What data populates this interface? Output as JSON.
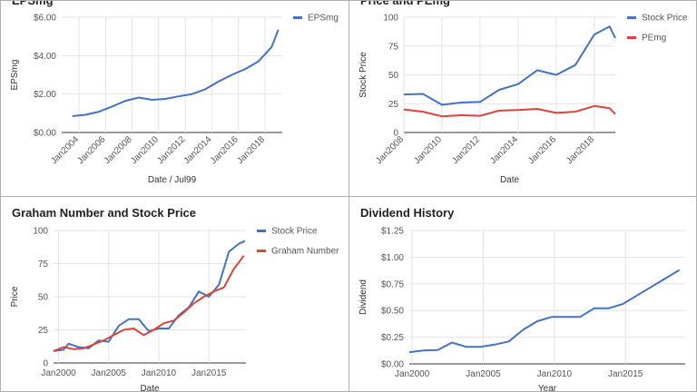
{
  "colors": {
    "blue": "#4472c4",
    "red": "#db4437",
    "grid": "#e3e3e3",
    "axis": "#333333",
    "text": "#555555"
  },
  "chart_data": [
    {
      "type": "line",
      "title": "EPSmg",
      "xlabel": "Date / Jul99",
      "ylabel": "EPSmg",
      "xlim": [
        2002.7,
        2019.3
      ],
      "ylim": [
        0,
        6
      ],
      "yticks": [
        {
          "v": 0,
          "label": "$0.00"
        },
        {
          "v": 2,
          "label": "$2.00"
        },
        {
          "v": 4,
          "label": "$4.00"
        },
        {
          "v": 6,
          "label": "$6.00"
        }
      ],
      "xticks": [
        {
          "v": 2004,
          "label": "Jan2004"
        },
        {
          "v": 2006,
          "label": "Jan2006"
        },
        {
          "v": 2008,
          "label": "Jan2008"
        },
        {
          "v": 2010,
          "label": "Jan2010"
        },
        {
          "v": 2012,
          "label": "Jan2012"
        },
        {
          "v": 2014,
          "label": "Jan2014"
        },
        {
          "v": 2016,
          "label": "Jan2016"
        },
        {
          "v": 2018,
          "label": "Jan2018"
        }
      ],
      "rotate_x": true,
      "legend": "right",
      "series": [
        {
          "name": "EPSmg",
          "color": "#4472c4",
          "points": [
            [
              2003.5,
              0.85
            ],
            [
              2004.5,
              0.92
            ],
            [
              2005.5,
              1.08
            ],
            [
              2006.5,
              1.35
            ],
            [
              2007.5,
              1.65
            ],
            [
              2008.5,
              1.82
            ],
            [
              2009.5,
              1.7
            ],
            [
              2010.5,
              1.75
            ],
            [
              2011.5,
              1.88
            ],
            [
              2012.5,
              2.0
            ],
            [
              2013.5,
              2.25
            ],
            [
              2014.5,
              2.65
            ],
            [
              2015.5,
              3.0
            ],
            [
              2016.5,
              3.3
            ],
            [
              2017.5,
              3.7
            ],
            [
              2018.5,
              4.45
            ],
            [
              2019.0,
              5.35
            ]
          ]
        }
      ]
    },
    {
      "type": "line",
      "title": "Price and PEmg",
      "xlabel": "Date",
      "ylabel": "Stock Price",
      "xlim": [
        2008,
        2019.1
      ],
      "ylim": [
        0,
        100
      ],
      "yticks": [
        {
          "v": 0,
          "label": "0"
        },
        {
          "v": 25,
          "label": "25"
        },
        {
          "v": 50,
          "label": "50"
        },
        {
          "v": 75,
          "label": "75"
        },
        {
          "v": 100,
          "label": "100"
        }
      ],
      "xticks": [
        {
          "v": 2008,
          "label": "Jan2008"
        },
        {
          "v": 2010,
          "label": "Jan2010"
        },
        {
          "v": 2012,
          "label": "Jan2012"
        },
        {
          "v": 2014,
          "label": "Jan2014"
        },
        {
          "v": 2016,
          "label": "Jan2016"
        },
        {
          "v": 2018,
          "label": "Jan2018"
        }
      ],
      "rotate_x": true,
      "legend": "right",
      "series": [
        {
          "name": "Stock Price",
          "color": "#4472c4",
          "points": [
            [
              2008.0,
              33
            ],
            [
              2009.0,
              33.5
            ],
            [
              2010.0,
              24
            ],
            [
              2011.0,
              26
            ],
            [
              2012.0,
              26.5
            ],
            [
              2013.0,
              37
            ],
            [
              2014.0,
              42
            ],
            [
              2015.0,
              54
            ],
            [
              2016.0,
              50
            ],
            [
              2017.0,
              58.5
            ],
            [
              2018.0,
              85
            ],
            [
              2018.8,
              92
            ],
            [
              2019.1,
              82
            ]
          ]
        },
        {
          "name": "PEmg",
          "color": "#db4437",
          "points": [
            [
              2008.0,
              20
            ],
            [
              2009.0,
              18
            ],
            [
              2010.0,
              14
            ],
            [
              2011.0,
              15
            ],
            [
              2012.0,
              14.5
            ],
            [
              2013.0,
              19
            ],
            [
              2014.0,
              19.5
            ],
            [
              2015.0,
              20.5
            ],
            [
              2016.0,
              17
            ],
            [
              2017.0,
              18
            ],
            [
              2018.0,
              23
            ],
            [
              2018.8,
              21
            ],
            [
              2019.1,
              16
            ]
          ]
        }
      ]
    },
    {
      "type": "line",
      "title": "Graham Number and Stock Price",
      "xlabel": "Date",
      "ylabel": "Price",
      "xlim": [
        1999.5,
        2018.7
      ],
      "ylim": [
        0,
        100
      ],
      "yticks": [
        {
          "v": 0,
          "label": "0"
        },
        {
          "v": 25,
          "label": "25"
        },
        {
          "v": 50,
          "label": "50"
        },
        {
          "v": 75,
          "label": "75"
        },
        {
          "v": 100,
          "label": "100"
        }
      ],
      "xticks": [
        {
          "v": 2000,
          "label": "Jan2000"
        },
        {
          "v": 2005,
          "label": "Jan2005"
        },
        {
          "v": 2010,
          "label": "Jan2010"
        },
        {
          "v": 2015,
          "label": "Jan2015"
        }
      ],
      "rotate_x": false,
      "legend": "right",
      "series": [
        {
          "name": "Stock Price",
          "color": "#4472c4",
          "points": [
            [
              1999.5,
              9
            ],
            [
              2000.5,
              10
            ],
            [
              2001.0,
              14.5
            ],
            [
              2002.0,
              12
            ],
            [
              2003.0,
              11
            ],
            [
              2004.0,
              17
            ],
            [
              2005.0,
              16
            ],
            [
              2006.0,
              28
            ],
            [
              2007.0,
              33
            ],
            [
              2008.0,
              33
            ],
            [
              2009.0,
              24
            ],
            [
              2010.0,
              26
            ],
            [
              2011.0,
              26
            ],
            [
              2012.0,
              36
            ],
            [
              2013.0,
              42
            ],
            [
              2014.0,
              54
            ],
            [
              2015.0,
              50
            ],
            [
              2016.0,
              59
            ],
            [
              2017.0,
              84
            ],
            [
              2018.0,
              90
            ],
            [
              2018.6,
              92
            ]
          ]
        },
        {
          "name": "Graham Number",
          "color": "#db4437",
          "points": [
            [
              1999.5,
              9
            ],
            [
              2000.5,
              12
            ],
            [
              2001.5,
              10.5
            ],
            [
              2002.5,
              11
            ],
            [
              2003.5,
              14
            ],
            [
              2004.5,
              17
            ],
            [
              2005.5,
              21
            ],
            [
              2006.5,
              25
            ],
            [
              2007.5,
              26
            ],
            [
              2008.5,
              21
            ],
            [
              2009.5,
              25
            ],
            [
              2010.5,
              30
            ],
            [
              2011.5,
              32
            ],
            [
              2012.5,
              38
            ],
            [
              2013.5,
              45
            ],
            [
              2014.5,
              50
            ],
            [
              2015.5,
              54
            ],
            [
              2016.5,
              57
            ],
            [
              2017.5,
              71
            ],
            [
              2018.5,
              81
            ]
          ]
        }
      ]
    },
    {
      "type": "line",
      "title": "Dividend History",
      "xlabel": "Year",
      "ylabel": "Dividend",
      "xlim": [
        1999.8,
        2019.2
      ],
      "ylim": [
        0,
        1.25
      ],
      "yticks": [
        {
          "v": 0,
          "label": "$0.00"
        },
        {
          "v": 0.25,
          "label": "$0.25"
        },
        {
          "v": 0.5,
          "label": "$0.50"
        },
        {
          "v": 0.75,
          "label": "$0.75"
        },
        {
          "v": 1.0,
          "label": "$1.00"
        },
        {
          "v": 1.25,
          "label": "$1.25"
        }
      ],
      "xticks": [
        {
          "v": 2000,
          "label": "Jan2000"
        },
        {
          "v": 2005,
          "label": "Jan2005"
        },
        {
          "v": 2010,
          "label": "Jan2010"
        },
        {
          "v": 2015,
          "label": "Jan2015"
        }
      ],
      "rotate_x": false,
      "legend": "none",
      "series": [
        {
          "name": "Dividend",
          "color": "#4472c4",
          "points": [
            [
              1999.8,
              0.11
            ],
            [
              2000.8,
              0.125
            ],
            [
              2001.8,
              0.13
            ],
            [
              2002.8,
              0.2
            ],
            [
              2003.8,
              0.16
            ],
            [
              2004.8,
              0.16
            ],
            [
              2005.8,
              0.18
            ],
            [
              2006.8,
              0.21
            ],
            [
              2007.8,
              0.32
            ],
            [
              2008.8,
              0.4
            ],
            [
              2009.8,
              0.44
            ],
            [
              2010.8,
              0.44
            ],
            [
              2011.8,
              0.44
            ],
            [
              2012.8,
              0.52
            ],
            [
              2013.8,
              0.52
            ],
            [
              2014.8,
              0.56
            ],
            [
              2015.8,
              0.64
            ],
            [
              2016.8,
              0.72
            ],
            [
              2017.8,
              0.8
            ],
            [
              2018.8,
              0.88
            ]
          ]
        }
      ]
    }
  ]
}
